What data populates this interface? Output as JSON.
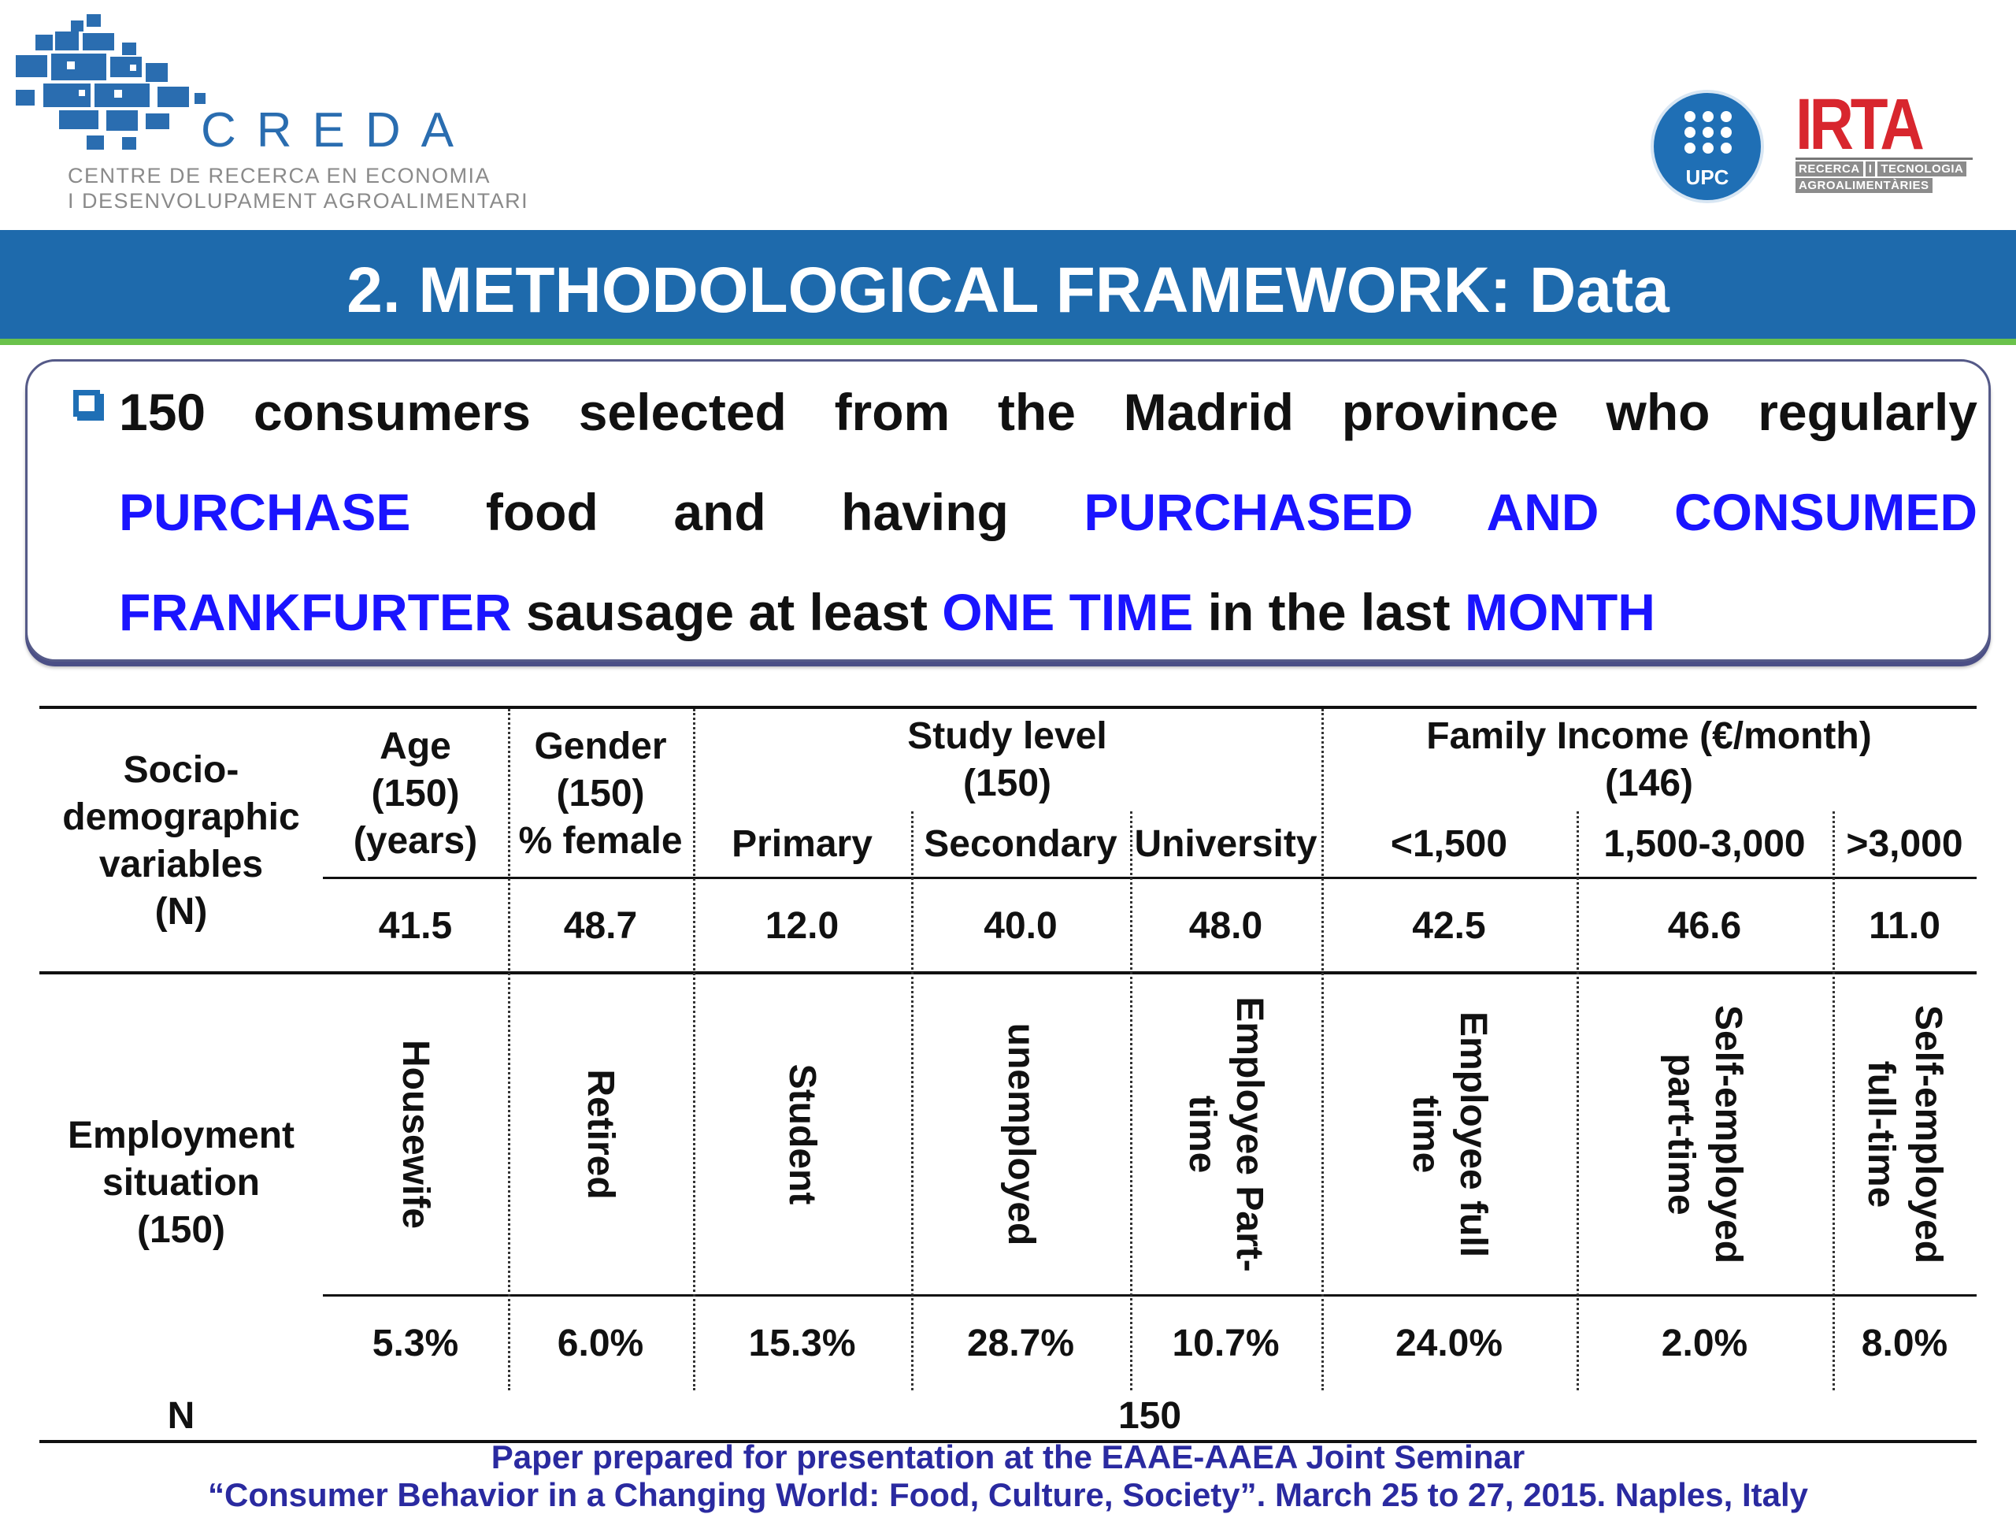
{
  "header": {
    "creda_name": "CREDA",
    "creda_line1": "CENTRE DE RECERCA EN ECONOMIA",
    "creda_line2": "I DESENVOLUPAMENT AGROALIMENTARI",
    "upc_label": "UPC",
    "irta_name": "IRTA",
    "irta_sub1": "RECERCA",
    "irta_sub2": "I",
    "irta_sub3": "TECNOLOGIA",
    "irta_sub4": "AGROALIMENTÀRIES"
  },
  "title": "2. METHODOLOGICAL FRAMEWORK: Data",
  "callout": {
    "line1": "150 consumers selected from the Madrid province who regularly",
    "line2_a": "PURCHASE",
    "line2_b": "food",
    "line2_c": "and",
    "line2_d": "having",
    "line2_e": "PURCHASED",
    "line2_f": "AND",
    "line2_g": "CONSUMED",
    "line3_a": "FRANKFURTER",
    "line3_b": " sausage at least ",
    "line3_c": "ONE TIME",
    "line3_d": " in the last ",
    "line3_e": "MONTH"
  },
  "table": {
    "row_header_socio": [
      "Socio-",
      "demographic",
      "variables",
      "(N)"
    ],
    "age_header": [
      "Age",
      "(150)",
      "(years)"
    ],
    "gender_header": [
      "Gender",
      "(150)",
      "% female"
    ],
    "study_header": [
      "Study level",
      "(150)"
    ],
    "income_header": [
      "Family Income (€/month)",
      "(146)"
    ],
    "study_sub": [
      "Primary",
      "Secondary",
      "University"
    ],
    "income_sub": [
      "<1,500",
      "1,500-3,000",
      ">3,000"
    ],
    "socio_values": [
      "41.5",
      "48.7",
      "12.0",
      "40.0",
      "48.0",
      "42.5",
      "46.6",
      "11.0"
    ],
    "row_header_employment": [
      "Employment",
      "situation",
      "(150)"
    ],
    "employment_categories": [
      [
        "Housewife"
      ],
      [
        "Retired"
      ],
      [
        "Student"
      ],
      [
        "unemployed"
      ],
      [
        "Employee Part-",
        "time"
      ],
      [
        "Employee full",
        "time"
      ],
      [
        "Self-employed",
        "part-time"
      ],
      [
        "Self-employed",
        "full-time"
      ]
    ],
    "employment_values": [
      "5.3%",
      "6.0%",
      "15.3%",
      "28.7%",
      "10.7%",
      "24.0%",
      "2.0%",
      "8.0%"
    ],
    "n_label": "N",
    "n_value": "150"
  },
  "footer": {
    "line1": "Paper prepared for presentation at the EAAE-AAEA Joint Seminar",
    "line2": "“Consumer Behavior in a Changing World: Food, Culture, Society”. March 25 to 27, 2015. Naples, Italy"
  },
  "colors": {
    "banner": "#1e6aac",
    "banner_underline": "#6ac24b",
    "emphasis_blue": "#1a14ff",
    "footer_text": "#2a2aa0",
    "irta_red": "#d8262e"
  }
}
